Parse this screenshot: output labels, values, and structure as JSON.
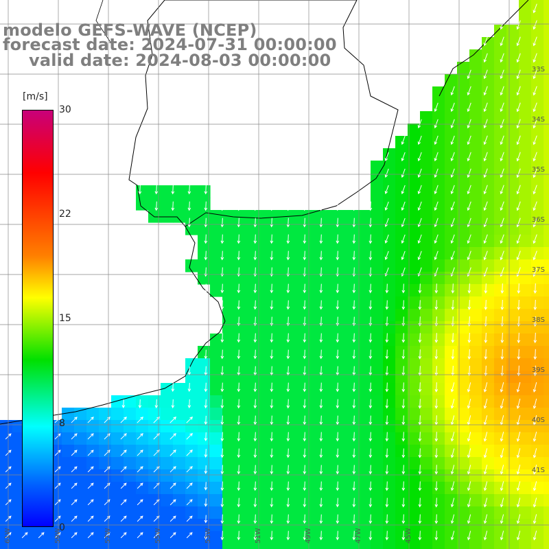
{
  "title": {
    "model": "modelo GEFS-WAVE (NCEP)",
    "forecast": "forecast date: 2024-07-31 00:00:00",
    "valid": "valid date: 2024-08-03 00:00:00"
  },
  "colorbar": {
    "units": "[m/s]",
    "ticks": [
      "30",
      "22",
      "15",
      "8",
      "0"
    ],
    "colors": [
      "#0000ff",
      "#0060ff",
      "#00ffff",
      "#00e000",
      "#ffff00",
      "#ff8000",
      "#ff0000",
      "#c8007a"
    ]
  },
  "map": {
    "lat_labels": [
      "33S",
      "34S",
      "35S",
      "36S",
      "37S",
      "38S",
      "39S",
      "40S",
      "41S"
    ],
    "lon_labels": [
      "61W",
      "59W",
      "57W",
      "55W",
      "53W",
      "51W",
      "49W",
      "47W",
      "45W"
    ],
    "land_color": "#ffffff",
    "grid_color": "#888888",
    "arrow_color": "#ffffff"
  }
}
